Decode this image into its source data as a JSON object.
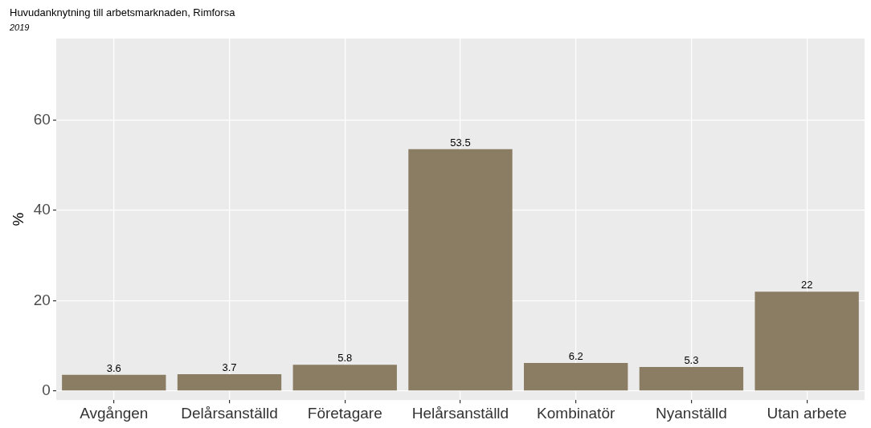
{
  "chart_data": {
    "type": "bar",
    "title": "Huvudanknytning till arbetsmarknaden, Rimforsa",
    "subtitle": "2019",
    "ylabel": "%",
    "categories": [
      "Avgången",
      "Delårsanställd",
      "Företagare",
      "Helårsanställd",
      "Kombinatör",
      "Nyanställd",
      "Utan arbete"
    ],
    "values": [
      3.6,
      3.7,
      5.8,
      53.5,
      6.2,
      5.3,
      22
    ],
    "color": "#8b7d63",
    "ylim": [
      -2,
      78
    ],
    "yticks": [
      0,
      20,
      40,
      60
    ],
    "grid": true,
    "data_labels": true
  }
}
